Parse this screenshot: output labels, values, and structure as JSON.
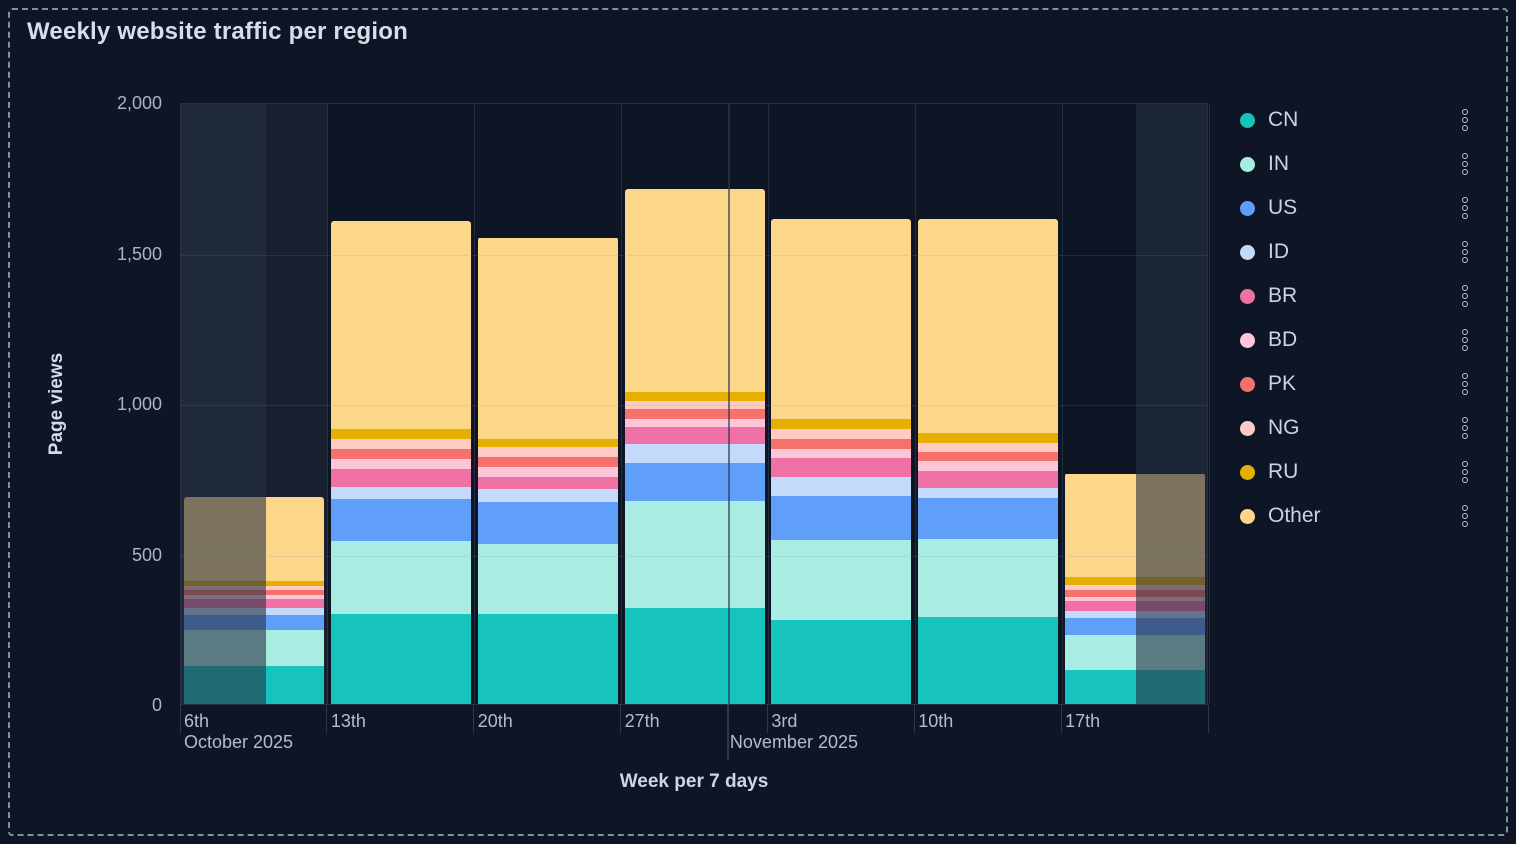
{
  "panel": {
    "title": "Weekly website traffic per region"
  },
  "y_axis": {
    "label": "Page views",
    "tick_labels": [
      "2,000",
      "1,500",
      "1,000",
      "500",
      "0"
    ],
    "max": 2000
  },
  "x_axis": {
    "label": "Week per 7 days",
    "week_labels": [
      "6th",
      "13th",
      "20th",
      "27th",
      "3rd",
      "10th",
      "17th"
    ],
    "month_labels": [
      {
        "text": "October 2025"
      },
      {
        "text": "November 2025"
      }
    ]
  },
  "legend": {
    "position": "right",
    "items": [
      "CN",
      "IN",
      "US",
      "ID",
      "BR",
      "BD",
      "PK",
      "NG",
      "RU",
      "Other"
    ]
  },
  "chart_data": {
    "type": "bar",
    "stacked": true,
    "title": "Weekly website traffic per region",
    "xlabel": "Week per 7 days",
    "ylabel": "Page views",
    "ylim": [
      0,
      2000
    ],
    "grid": true,
    "legend_position": "right",
    "categories": [
      "Oct 6",
      "Oct 13",
      "Oct 20",
      "Oct 27",
      "Nov 3",
      "Nov 10",
      "Nov 17"
    ],
    "series": [
      {
        "name": "CN",
        "color": "#17c3bd",
        "values": [
          125,
          300,
          300,
          318,
          280,
          290,
          113
        ]
      },
      {
        "name": "IN",
        "color": "#a9ece2",
        "values": [
          120,
          240,
          230,
          357,
          266,
          258,
          116
        ]
      },
      {
        "name": "US",
        "color": "#5f9ef9",
        "values": [
          52,
          140,
          140,
          125,
          144,
          135,
          56
        ]
      },
      {
        "name": "ID",
        "color": "#c4dafb",
        "values": [
          22,
          42,
          45,
          64,
          65,
          34,
          25
        ]
      },
      {
        "name": "BR",
        "color": "#f071a6",
        "values": [
          30,
          60,
          40,
          55,
          64,
          58,
          33
        ]
      },
      {
        "name": "BD",
        "color": "#fcc6d8",
        "values": [
          14,
          33,
          32,
          28,
          28,
          33,
          14
        ]
      },
      {
        "name": "PK",
        "color": "#f4716c",
        "values": [
          17,
          33,
          33,
          33,
          33,
          28,
          22
        ]
      },
      {
        "name": "NG",
        "color": "#ffc9c4",
        "values": [
          13,
          33,
          34,
          28,
          33,
          33,
          16
        ]
      },
      {
        "name": "RU",
        "color": "#e6b003",
        "values": [
          15,
          34,
          28,
          30,
          34,
          31,
          26
        ]
      },
      {
        "name": "Other",
        "color": "#fcd78a",
        "values": [
          280,
          690,
          668,
          673,
          664,
          711,
          345
        ]
      }
    ],
    "totals": [
      688,
      1605,
      1550,
      1711,
      1611,
      1611,
      766
    ],
    "out_of_range_dim": {
      "left_fraction": 0.0827,
      "right_fraction": 0.0695
    },
    "month_boundary_fraction": 0.533
  }
}
